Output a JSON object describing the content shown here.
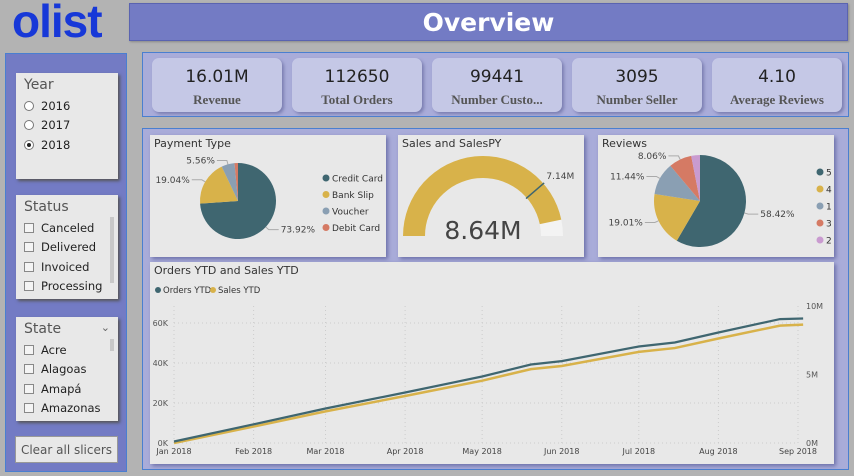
{
  "logo": "olist",
  "title": "Overview",
  "slicers": {
    "year": {
      "title": "Year",
      "options": [
        "2016",
        "2017",
        "2018"
      ],
      "selected": "2018"
    },
    "status": {
      "title": "Status",
      "options": [
        "Canceled",
        "Delivered",
        "Invoiced",
        "Processing"
      ]
    },
    "state": {
      "title": "State",
      "options": [
        "Acre",
        "Alagoas",
        "Amapá",
        "Amazonas"
      ]
    },
    "clear_label": "Clear all slicers"
  },
  "kpis": [
    {
      "value": "16.01M",
      "label": "Revenue"
    },
    {
      "value": "112650",
      "label": "Total Orders"
    },
    {
      "value": "99441",
      "label": "Number Custo..."
    },
    {
      "value": "3095",
      "label": "Number Seller"
    },
    {
      "value": "4.10",
      "label": "Average Reviews"
    }
  ],
  "colors": {
    "teal": "#3f6670",
    "gold": "#d8b24a",
    "slate": "#8a9fb3",
    "salmon": "#d57a64",
    "pink": "#c99bd0"
  },
  "chart_data": [
    {
      "type": "pie",
      "title": "Payment Type",
      "legend_position": "right",
      "categories": [
        "Credit Card",
        "Bank Slip",
        "Voucher",
        "Debit Card"
      ],
      "values": [
        73.92,
        19.04,
        5.56,
        1.48
      ],
      "labels": [
        "73.92%",
        "19.04%",
        "5.56%",
        ""
      ]
    },
    {
      "type": "gauge",
      "title": "Sales and SalesPY",
      "value": 8.64,
      "value_label": "8.64M",
      "target": 7.14,
      "target_label": "7.14M"
    },
    {
      "type": "pie",
      "title": "Reviews",
      "legend_position": "right",
      "categories": [
        "5",
        "4",
        "1",
        "3",
        "2"
      ],
      "values": [
        58.42,
        19.01,
        11.44,
        8.06,
        3.07
      ],
      "labels": [
        "58.42%",
        "19.01%",
        "11.44%",
        "8.06%",
        ""
      ]
    },
    {
      "type": "line",
      "title": "Orders YTD and Sales YTD",
      "legend_position": "top-left",
      "grid": true,
      "x": [
        "2018-01-01",
        "2018-02-01",
        "2018-03-01",
        "2018-04-01",
        "2018-05-01",
        "2018-05-20",
        "2018-06-01",
        "2018-07-01",
        "2018-07-15",
        "2018-08-01",
        "2018-08-25",
        "2018-09-03"
      ],
      "x_ticks": [
        "Jan 2018",
        "Feb 2018",
        "Mar 2018",
        "Apr 2018",
        "May 2018",
        "Jun 2018",
        "Jul 2018",
        "Aug 2018",
        "Sep 2018"
      ],
      "y_ticks": [
        "0K",
        "20K",
        "40K",
        "60K"
      ],
      "ylim": [
        0,
        70000
      ],
      "y2_ticks": [
        "0M",
        "5M",
        "10M"
      ],
      "y2lim": [
        0,
        10000000
      ],
      "series": [
        {
          "name": "Orders YTD",
          "axis": "left",
          "values": [
            0,
            8600,
            16500,
            24500,
            32500,
            38500,
            40200,
            47500,
            49500,
            54500,
            61200,
            61500
          ]
        },
        {
          "name": "Sales YTD",
          "axis": "right",
          "values": [
            0,
            1200000,
            2310000,
            3430000,
            4550000,
            5390000,
            5620000,
            6650000,
            6930000,
            7630000,
            8570000,
            8640000
          ]
        }
      ]
    }
  ]
}
